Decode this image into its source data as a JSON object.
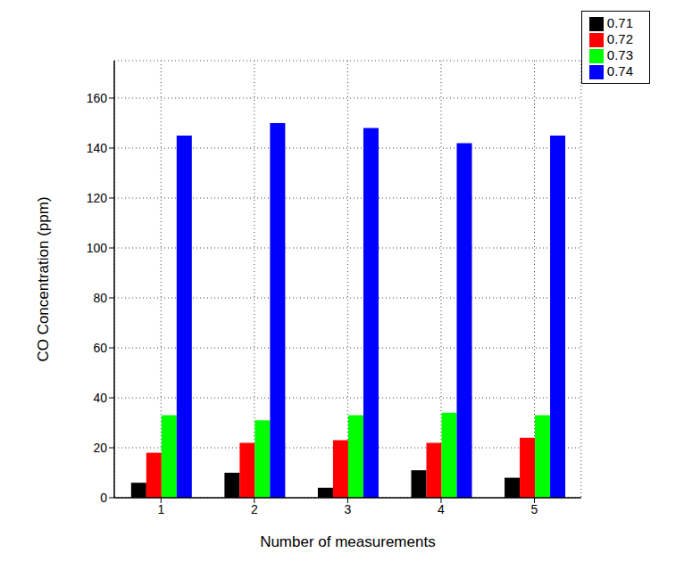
{
  "chart_data": {
    "type": "bar",
    "x_label": "Number of measurements",
    "y_label": "CO Concentration (ppm)",
    "categories": [
      "1",
      "2",
      "3",
      "4",
      "5"
    ],
    "series": [
      {
        "name": "0.71",
        "color": "#000000",
        "values": [
          6,
          10,
          4,
          11,
          8
        ]
      },
      {
        "name": "0.72",
        "color": "#ff0000",
        "values": [
          18,
          22,
          23,
          22,
          24
        ]
      },
      {
        "name": "0.73",
        "color": "#00ff00",
        "values": [
          33,
          31,
          33,
          34,
          33
        ]
      },
      {
        "name": "0.74",
        "color": "#0000ff",
        "values": [
          145,
          150,
          148,
          142,
          145
        ]
      }
    ],
    "ylim": [
      0,
      175
    ],
    "yticks": [
      0,
      20,
      40,
      60,
      80,
      100,
      120,
      140,
      160
    ],
    "grid": true,
    "legend": "right"
  }
}
